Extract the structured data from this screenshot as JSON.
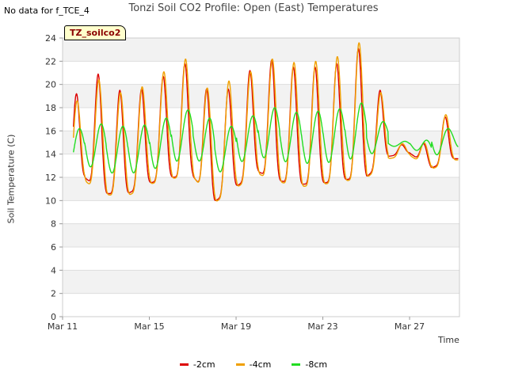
{
  "header": {
    "no_data": "No data for f_TCE_4",
    "tag": "TZ_soilco2"
  },
  "chart_data": {
    "type": "line",
    "title": "Tonzi Soil CO2 Profile: Open (East) Temperatures",
    "xlabel": "Time",
    "ylabel": "Soil Temperature (C)",
    "x_start_day": 11,
    "xlim": [
      11,
      29.3
    ],
    "ylim": [
      0,
      24
    ],
    "yticks": [
      "0",
      "2",
      "4",
      "6",
      "8",
      "10",
      "12",
      "14",
      "16",
      "18",
      "20",
      "22",
      "24"
    ],
    "xticks": [
      {
        "day": 11,
        "label": "Mar 11"
      },
      {
        "day": 15,
        "label": "Mar 15"
      },
      {
        "day": 19,
        "label": "Mar 19"
      },
      {
        "day": 23,
        "label": "Mar 23"
      },
      {
        "day": 27,
        "label": "Mar 27"
      }
    ],
    "grid": true,
    "legend_position": "bottom",
    "daily_2cm": {
      "min": [
        10.4,
        12.0,
        10.6,
        10.6,
        11.5,
        12.0,
        12.1,
        9.9,
        11.2,
        12.5,
        11.7,
        11.4,
        11.5,
        11.8,
        12.0,
        13.8,
        14.1,
        12.8,
        13.6
      ],
      "max": [
        19.2,
        20.9,
        19.5,
        19.6,
        20.7,
        21.8,
        19.6,
        19.6,
        21.2,
        22.1,
        21.5,
        21.5,
        21.8,
        23.1,
        19.5,
        14.8,
        14.9,
        17.2
      ]
    },
    "daily_4cm": {
      "min": [
        10.2,
        11.7,
        10.5,
        10.4,
        11.4,
        11.9,
        12.1,
        9.8,
        11.1,
        12.3,
        11.6,
        11.2,
        11.4,
        11.7,
        11.9,
        13.6,
        13.9,
        12.7,
        13.5
      ],
      "max": [
        18.6,
        20.4,
        19.3,
        19.8,
        21.1,
        22.2,
        19.7,
        20.3,
        21.1,
        22.2,
        21.9,
        22.0,
        22.4,
        23.6,
        19.3,
        14.9,
        15.0,
        17.4
      ]
    },
    "daily_8cm": {
      "min": [
        12.4,
        13.1,
        12.4,
        12.3,
        12.6,
        13.2,
        13.9,
        12.2,
        13.2,
        13.8,
        13.4,
        13.2,
        13.2,
        13.5,
        13.8,
        14.7,
        14.6,
        13.7,
        14.6
      ],
      "max": [
        16.2,
        16.6,
        16.4,
        16.5,
        17.1,
        17.8,
        17.1,
        16.4,
        17.3,
        18.0,
        17.6,
        17.7,
        17.9,
        18.4,
        16.8,
        15.1,
        15.2,
        16.2
      ]
    },
    "series": [
      {
        "name": "-2cm",
        "key": "daily_2cm",
        "color": "#dd0000",
        "width": 1.4,
        "phase": 0.64,
        "sharp": 2.2
      },
      {
        "name": "-4cm",
        "key": "daily_4cm",
        "color": "#f0a000",
        "width": 1.4,
        "phase": 0.67,
        "sharp": 1.8
      },
      {
        "name": "-8cm",
        "key": "daily_8cm",
        "color": "#22dd22",
        "width": 1.4,
        "phase": 0.78,
        "sharp": 1.0
      }
    ]
  }
}
